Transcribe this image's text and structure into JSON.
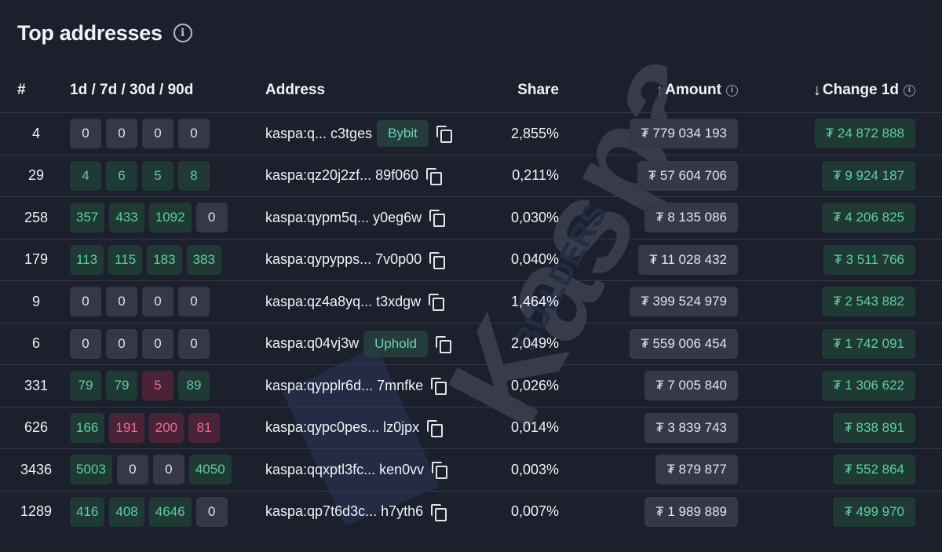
{
  "title": "Top addresses",
  "headers": {
    "rank": "#",
    "activity": "1d / 7d / 30d / 90d",
    "address": "Address",
    "share": "Share",
    "amount": "Amount",
    "change": "Change 1d"
  },
  "sort": {
    "amount": "ascending",
    "change": "descending"
  },
  "watermark": {
    "word": "Kaspa",
    "sub": "BUILDERS"
  },
  "rows": [
    {
      "rank": "4",
      "activity": [
        {
          "v": "0",
          "t": "zero"
        },
        {
          "v": "0",
          "t": "zero"
        },
        {
          "v": "0",
          "t": "zero"
        },
        {
          "v": "0",
          "t": "zero"
        }
      ],
      "address": "kaspa:q... c3tges",
      "tag": "Bybit",
      "share": "2,855%",
      "amount": "₮ 779 034 193",
      "change": "₮ 24 872 888"
    },
    {
      "rank": "29",
      "activity": [
        {
          "v": "4",
          "t": "pos"
        },
        {
          "v": "6",
          "t": "pos"
        },
        {
          "v": "5",
          "t": "pos"
        },
        {
          "v": "8",
          "t": "pos"
        }
      ],
      "address": "kaspa:qz20j2zf... 89f060",
      "tag": "",
      "share": "0,211%",
      "amount": "₮ 57 604 706",
      "change": "₮ 9 924 187"
    },
    {
      "rank": "258",
      "activity": [
        {
          "v": "357",
          "t": "pos"
        },
        {
          "v": "433",
          "t": "pos"
        },
        {
          "v": "1092",
          "t": "pos"
        },
        {
          "v": "0",
          "t": "zero"
        }
      ],
      "address": "kaspa:qypm5q... y0eg6w",
      "tag": "",
      "share": "0,030%",
      "amount": "₮ 8 135 086",
      "change": "₮ 4 206 825"
    },
    {
      "rank": "179",
      "activity": [
        {
          "v": "113",
          "t": "pos"
        },
        {
          "v": "115",
          "t": "pos"
        },
        {
          "v": "183",
          "t": "pos"
        },
        {
          "v": "383",
          "t": "pos"
        }
      ],
      "address": "kaspa:qypypps... 7v0p00",
      "tag": "",
      "share": "0,040%",
      "amount": "₮ 11 028 432",
      "change": "₮ 3 511 766"
    },
    {
      "rank": "9",
      "activity": [
        {
          "v": "0",
          "t": "zero"
        },
        {
          "v": "0",
          "t": "zero"
        },
        {
          "v": "0",
          "t": "zero"
        },
        {
          "v": "0",
          "t": "zero"
        }
      ],
      "address": "kaspa:qz4a8yq... t3xdgw",
      "tag": "",
      "share": "1,464%",
      "amount": "₮ 399 524 979",
      "change": "₮ 2 543 882"
    },
    {
      "rank": "6",
      "activity": [
        {
          "v": "0",
          "t": "zero"
        },
        {
          "v": "0",
          "t": "zero"
        },
        {
          "v": "0",
          "t": "zero"
        },
        {
          "v": "0",
          "t": "zero"
        }
      ],
      "address": "kaspa:q04vj3w",
      "tag": "Uphold",
      "share": "2,049%",
      "amount": "₮ 559 006 454",
      "change": "₮ 1 742 091"
    },
    {
      "rank": "331",
      "activity": [
        {
          "v": "79",
          "t": "pos"
        },
        {
          "v": "79",
          "t": "pos"
        },
        {
          "v": "5",
          "t": "neg"
        },
        {
          "v": "89",
          "t": "pos"
        }
      ],
      "address": "kaspa:qypplr6d... 7mnfke",
      "tag": "",
      "share": "0,026%",
      "amount": "₮ 7 005 840",
      "change": "₮ 1 306 622"
    },
    {
      "rank": "626",
      "activity": [
        {
          "v": "166",
          "t": "pos"
        },
        {
          "v": "191",
          "t": "neg"
        },
        {
          "v": "200",
          "t": "neg"
        },
        {
          "v": "81",
          "t": "neg"
        }
      ],
      "address": "kaspa:qypc0pes... lz0jpx",
      "tag": "",
      "share": "0,014%",
      "amount": "₮ 3 839 743",
      "change": "₮ 838 891"
    },
    {
      "rank": "3436",
      "activity": [
        {
          "v": "5003",
          "t": "pos"
        },
        {
          "v": "0",
          "t": "zero"
        },
        {
          "v": "0",
          "t": "zero"
        },
        {
          "v": "4050",
          "t": "pos"
        }
      ],
      "address": "kaspa:qqxptl3fc... ken0vv",
      "tag": "",
      "share": "0,003%",
      "amount": "₮ 879 877",
      "change": "₮ 552 864"
    },
    {
      "rank": "1289",
      "activity": [
        {
          "v": "416",
          "t": "pos"
        },
        {
          "v": "408",
          "t": "pos"
        },
        {
          "v": "4646",
          "t": "pos"
        },
        {
          "v": "0",
          "t": "zero"
        }
      ],
      "address": "kaspa:qp7t6d3c... h7yth6",
      "tag": "",
      "share": "0,007%",
      "amount": "₮ 1 989 889",
      "change": "₮ 499 970"
    }
  ]
}
